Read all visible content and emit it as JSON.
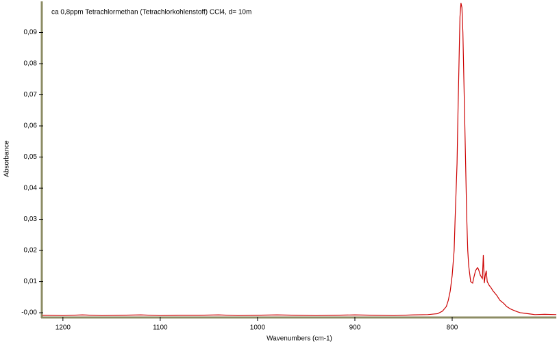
{
  "chart_data": {
    "type": "line",
    "title": "ca 0,8ppm Tetrachlormethan (Tetrachlorkohlenstoff) CCl4, d= 10m",
    "x_label": "Wavenumbers (cm-1)",
    "y_label": "Absorbance",
    "xlim": [
      1221,
      693
    ],
    "ylim": [
      -0.0013,
      0.1
    ],
    "xticks": [
      1200,
      1100,
      1000,
      900,
      800
    ],
    "yticks": [
      {
        "value": 0,
        "label": "-0,00"
      },
      {
        "value": 0.01,
        "label": "0,01"
      },
      {
        "value": 0.02,
        "label": "0,02"
      },
      {
        "value": 0.03,
        "label": "0,03"
      },
      {
        "value": 0.04,
        "label": "0,04"
      },
      {
        "value": 0.05,
        "label": "0,05"
      },
      {
        "value": 0.06,
        "label": "0,06"
      },
      {
        "value": 0.07,
        "label": "0,07"
      },
      {
        "value": 0.08,
        "label": "0,08"
      },
      {
        "value": 0.09,
        "label": "0,09"
      }
    ],
    "grid": false,
    "series": [
      {
        "color": "#cc0000",
        "x": [
          1221,
          1200,
          1180,
          1160,
          1140,
          1120,
          1100,
          1080,
          1060,
          1040,
          1020,
          1000,
          980,
          960,
          940,
          920,
          900,
          880,
          860,
          840,
          825,
          815,
          810,
          806,
          804,
          802,
          800,
          798,
          797,
          795,
          794,
          793,
          792,
          791,
          790,
          789,
          788,
          787,
          786,
          785,
          784,
          783,
          781,
          779,
          778,
          776,
          774,
          773,
          771,
          769,
          768,
          767,
          766,
          765,
          764,
          762,
          760,
          758,
          754,
          751,
          747,
          744,
          740,
          737,
          733,
          730,
          720,
          715,
          705,
          693
        ],
        "values": [
          -0.0008,
          -0.0009,
          -0.0007,
          -0.0009,
          -0.0008,
          -0.0007,
          -0.0009,
          -0.0008,
          -0.0008,
          -0.0007,
          -0.0009,
          -0.0008,
          -0.0007,
          -0.0008,
          -0.0009,
          -0.0008,
          -0.0007,
          -0.0008,
          -0.0009,
          -0.0007,
          -0.0006,
          -0.0003,
          0.0005,
          0.002,
          0.004,
          0.007,
          0.012,
          0.02,
          0.03,
          0.048,
          0.065,
          0.08,
          0.095,
          0.0995,
          0.098,
          0.09,
          0.075,
          0.06,
          0.045,
          0.03,
          0.02,
          0.015,
          0.01,
          0.0095,
          0.011,
          0.0135,
          0.0145,
          0.014,
          0.012,
          0.011,
          0.0185,
          0.0095,
          0.012,
          0.0135,
          0.01,
          0.0088,
          0.008,
          0.007,
          0.0055,
          0.004,
          0.003,
          0.002,
          0.0012,
          0.0008,
          0.0003,
          0,
          -0.0004,
          -0.0006,
          -0.0005,
          -0.0006
        ]
      }
    ]
  }
}
